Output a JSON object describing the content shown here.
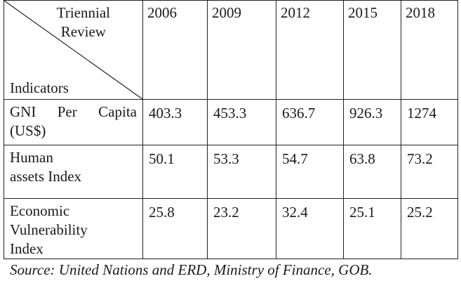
{
  "table": {
    "corner_top_line1": "Triennial",
    "corner_top_line2": "Review",
    "corner_bottom": "Indicators",
    "years": [
      "2006",
      "2009",
      "2012",
      "2015",
      "2018"
    ],
    "rows": [
      {
        "label_parts": [
          "GNI",
          "Per",
          "Capita"
        ],
        "label_line2": "(US$)",
        "values": [
          "403.3",
          "453.3",
          "636.7",
          "926.3",
          "1274"
        ]
      },
      {
        "label_line1": "Human",
        "label_line2": "assets Index",
        "values": [
          "50.1",
          "53.3",
          "54.7",
          "63.8",
          "73.2"
        ]
      },
      {
        "label_line1": "Economic",
        "label_line2": "Vulnerability",
        "label_line3": "Index",
        "values": [
          "25.8",
          "23.2",
          "32.4",
          "25.1",
          "25.2"
        ]
      }
    ]
  },
  "source": "Source: United Nations and ERD, Ministry of Finance, GOB."
}
